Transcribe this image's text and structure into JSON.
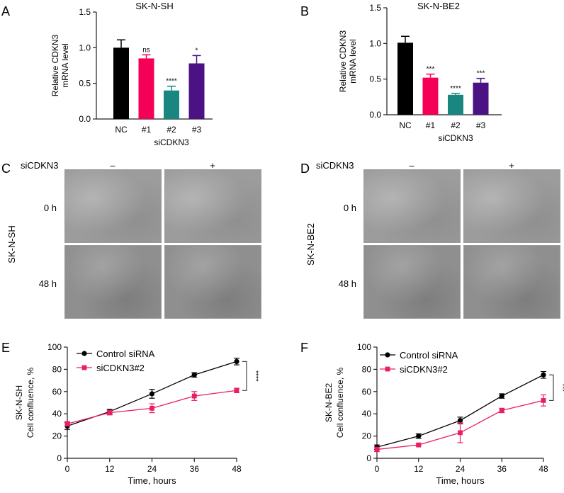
{
  "panel_letters": {
    "A": "A",
    "B": "B",
    "C": "C",
    "D": "D",
    "E": "E",
    "F": "F"
  },
  "micrograph_panels": {
    "C": {
      "cell_line": "SK-N-SH",
      "treatment_label": "siCDKN3",
      "minus": "–",
      "plus": "+",
      "times": [
        "0 h",
        "48 h"
      ]
    },
    "D": {
      "cell_line": "SK-N-BE2",
      "treatment_label": "siCDKN3",
      "minus": "–",
      "plus": "+",
      "times": [
        "0 h",
        "48 h"
      ]
    }
  },
  "colors": {
    "NC": "#000000",
    "si1": "#f50057",
    "si2": "#19877f",
    "si3": "#4b1283",
    "control_line": "#000000",
    "si_line": "#e91e63"
  },
  "chart_data": [
    {
      "panel": "A",
      "type": "bar",
      "title": "SK-N-SH",
      "ylabel": [
        "Relative CDKN3",
        "mRNA level"
      ],
      "xlabel": "siCDKN3",
      "categories": [
        "NC",
        "#1",
        "#2",
        "#3"
      ],
      "values": [
        1.0,
        0.85,
        0.4,
        0.78
      ],
      "errors": [
        0.11,
        0.05,
        0.06,
        0.11
      ],
      "significance": [
        "",
        "ns",
        "****",
        "*"
      ],
      "ylim": [
        0,
        1.5
      ],
      "yticks": [
        "0.0",
        "0.5",
        "1.0",
        "1.5"
      ],
      "bar_colors": [
        "#000000",
        "#f50057",
        "#19877f",
        "#4b1283"
      ]
    },
    {
      "panel": "B",
      "type": "bar",
      "title": "SK-N-BE2",
      "ylabel": [
        "Relative CDKN3",
        "mRNA level"
      ],
      "xlabel": "siCDKN3",
      "categories": [
        "NC",
        "#1",
        "#2",
        "#3"
      ],
      "values": [
        1.01,
        0.52,
        0.28,
        0.45
      ],
      "errors": [
        0.09,
        0.05,
        0.02,
        0.06
      ],
      "significance": [
        "",
        "***",
        "****",
        "***"
      ],
      "ylim": [
        0,
        1.5
      ],
      "yticks": [
        "0.0",
        "0.5",
        "1.0",
        "1.5"
      ],
      "bar_colors": [
        "#000000",
        "#f50057",
        "#19877f",
        "#4b1283"
      ]
    },
    {
      "panel": "E",
      "type": "line",
      "cell_line": "SK-N-SH",
      "ylabel": "Cell confluence, %",
      "xlabel": "Time, hours",
      "x": [
        0,
        12,
        24,
        36,
        48
      ],
      "xlim": [
        0,
        48
      ],
      "ylim": [
        0,
        100
      ],
      "xticks": [
        "0",
        "12",
        "24",
        "36",
        "48"
      ],
      "yticks": [
        "0",
        "20",
        "40",
        "60",
        "80",
        "100"
      ],
      "series": [
        {
          "name": "Control siRNA",
          "values": [
            29,
            42,
            58,
            75,
            87
          ],
          "errors": [
            3,
            2,
            4,
            2,
            3
          ],
          "marker": "circle",
          "color": "#000000"
        },
        {
          "name": "siCDKN3#2",
          "values": [
            31,
            41,
            45,
            56,
            61
          ],
          "errors": [
            2,
            2,
            4,
            4,
            2
          ],
          "marker": "square",
          "color": "#e91e63"
        }
      ],
      "significance": "****"
    },
    {
      "panel": "F",
      "type": "line",
      "cell_line": "SK-N-BE2",
      "ylabel": "Cell confluence, %",
      "xlabel": "Time, hours",
      "x": [
        0,
        12,
        24,
        36,
        48
      ],
      "xlim": [
        0,
        48
      ],
      "ylim": [
        0,
        100
      ],
      "xticks": [
        "0",
        "12",
        "24",
        "36",
        "48"
      ],
      "yticks": [
        "0",
        "20",
        "40",
        "60",
        "80",
        "100"
      ],
      "series": [
        {
          "name": "Control siRNA",
          "values": [
            10,
            20,
            34,
            56,
            75
          ],
          "errors": [
            2,
            2,
            3,
            2,
            3
          ],
          "marker": "circle",
          "color": "#000000"
        },
        {
          "name": "siCDKN3#2",
          "values": [
            8,
            12,
            23,
            43,
            52
          ],
          "errors": [
            2,
            1,
            9,
            2,
            5
          ],
          "marker": "square",
          "color": "#e91e63"
        }
      ],
      "significance": "***"
    }
  ]
}
